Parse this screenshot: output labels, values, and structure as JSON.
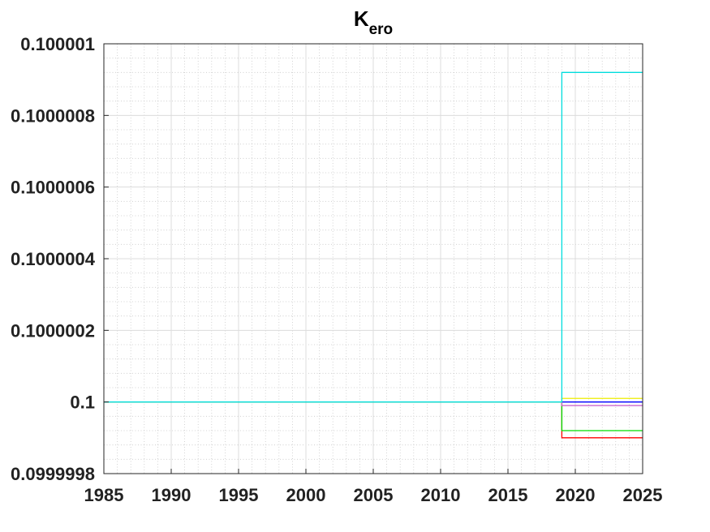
{
  "chart_data": {
    "type": "line",
    "title": "K",
    "title_subscript": "ero",
    "xlabel": "",
    "ylabel": "",
    "xlim": [
      1985,
      2025
    ],
    "ylim": [
      0.0999998,
      0.100001
    ],
    "x_ticks": [
      1985,
      1990,
      1995,
      2000,
      2005,
      2010,
      2015,
      2020,
      2025
    ],
    "x_tick_labels": [
      "1985",
      "1990",
      "1995",
      "2000",
      "2005",
      "2010",
      "2015",
      "2020",
      "2025"
    ],
    "y_ticks": [
      0.0999998,
      0.1,
      0.1000002,
      0.1000004,
      0.1000006,
      0.1000008,
      0.100001
    ],
    "y_tick_labels": [
      "0.0999998",
      "0.1",
      "0.1000002",
      "0.1000004",
      "0.1000006",
      "0.1000008",
      "0.100001"
    ],
    "grid": "on",
    "minor_grid": "on",
    "legend": "none",
    "step": true,
    "series": [
      {
        "color": "#ff0000",
        "x": [
          1985,
          2019,
          2019,
          2025
        ],
        "y": [
          0.1,
          0.1,
          0.0999999,
          0.0999999
        ]
      },
      {
        "color": "#00dd00",
        "x": [
          1985,
          2019,
          2019,
          2025
        ],
        "y": [
          0.1,
          0.1,
          0.09999992,
          0.09999992
        ]
      },
      {
        "color": "#cc66cc",
        "x": [
          1985,
          2019,
          2019,
          2025
        ],
        "y": [
          0.1,
          0.1,
          0.09999999,
          0.09999999
        ]
      },
      {
        "color": "#0000ff",
        "x": [
          1985,
          2019,
          2019,
          2025
        ],
        "y": [
          0.1,
          0.1,
          0.1,
          0.1
        ]
      },
      {
        "color": "#eeee00",
        "x": [
          1985,
          2019,
          2019,
          2025
        ],
        "y": [
          0.1,
          0.1,
          0.10000001,
          0.10000001
        ]
      },
      {
        "color": "#00dddd",
        "x": [
          1985,
          2019,
          2019,
          2025
        ],
        "y": [
          0.1,
          0.1,
          0.10000092,
          0.10000092
        ]
      }
    ]
  }
}
